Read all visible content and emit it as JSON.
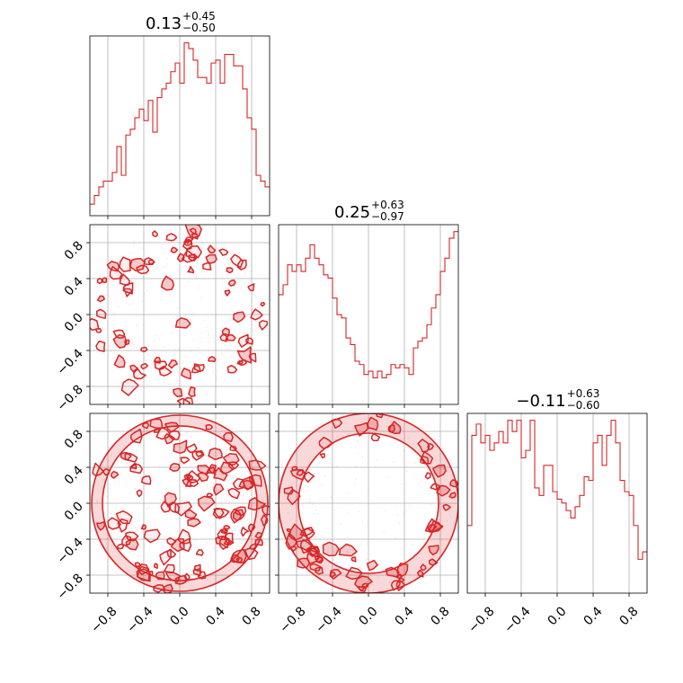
{
  "chart_data": {
    "type": "corner",
    "color": "#d62728",
    "range": [
      -1,
      1
    ],
    "ticks": [
      -0.8,
      -0.4,
      0.0,
      0.4,
      0.8
    ],
    "tick_labels": [
      "−0.8",
      "−0.4",
      "0.0",
      "0.4",
      "0.8"
    ],
    "grid": true,
    "titles": [
      {
        "main": "0.13",
        "sup": "+0.45",
        "sub": "−0.50"
      },
      {
        "main": "0.25",
        "sup": "+0.63",
        "sub": "−0.97"
      },
      {
        "main": "−0.11",
        "sup": "+0.63",
        "sub": "−0.60"
      }
    ],
    "histograms": [
      {
        "variable": 0,
        "bins": 40,
        "counts": [
          4,
          7,
          10,
          12,
          12,
          15,
          24,
          14,
          28,
          30,
          34,
          37,
          33,
          40,
          29,
          41,
          44,
          46,
          50,
          53,
          46,
          60,
          58,
          54,
          48,
          48,
          46,
          53,
          54,
          46,
          56,
          56,
          52,
          52,
          44,
          34,
          30,
          14,
          12,
          10
        ]
      },
      {
        "variable": 1,
        "bins": 40,
        "counts": [
          33,
          36,
          42,
          40,
          42,
          40,
          44,
          48,
          44,
          42,
          39,
          38,
          32,
          27,
          26,
          20,
          18,
          13,
          12,
          9,
          10,
          8,
          10,
          8,
          9,
          12,
          11,
          12,
          11,
          9,
          17,
          19,
          20,
          24,
          29,
          33,
          40,
          44,
          50,
          52
        ]
      },
      {
        "variable": 2,
        "bins": 40,
        "counts": [
          18,
          42,
          45,
          40,
          42,
          38,
          40,
          43,
          40,
          46,
          43,
          46,
          36,
          38,
          46,
          28,
          26,
          34,
          34,
          27,
          25,
          24,
          22,
          20,
          23,
          26,
          31,
          30,
          40,
          42,
          34,
          42,
          46,
          40,
          30,
          27,
          26,
          18,
          9,
          11
        ]
      }
    ],
    "contours_2d": [
      {
        "x_var": 0,
        "y_var": 1,
        "support": "unit-circle",
        "structure": "ring-band near boundary, density lower in central horizontal band"
      },
      {
        "x_var": 0,
        "y_var": 2,
        "support": "unit-circle",
        "structure": "dense scattered contours, denser at large x"
      },
      {
        "x_var": 1,
        "y_var": 2,
        "support": "unit-circle",
        "structure": "thick shell near circle edge, empty interior"
      }
    ]
  }
}
